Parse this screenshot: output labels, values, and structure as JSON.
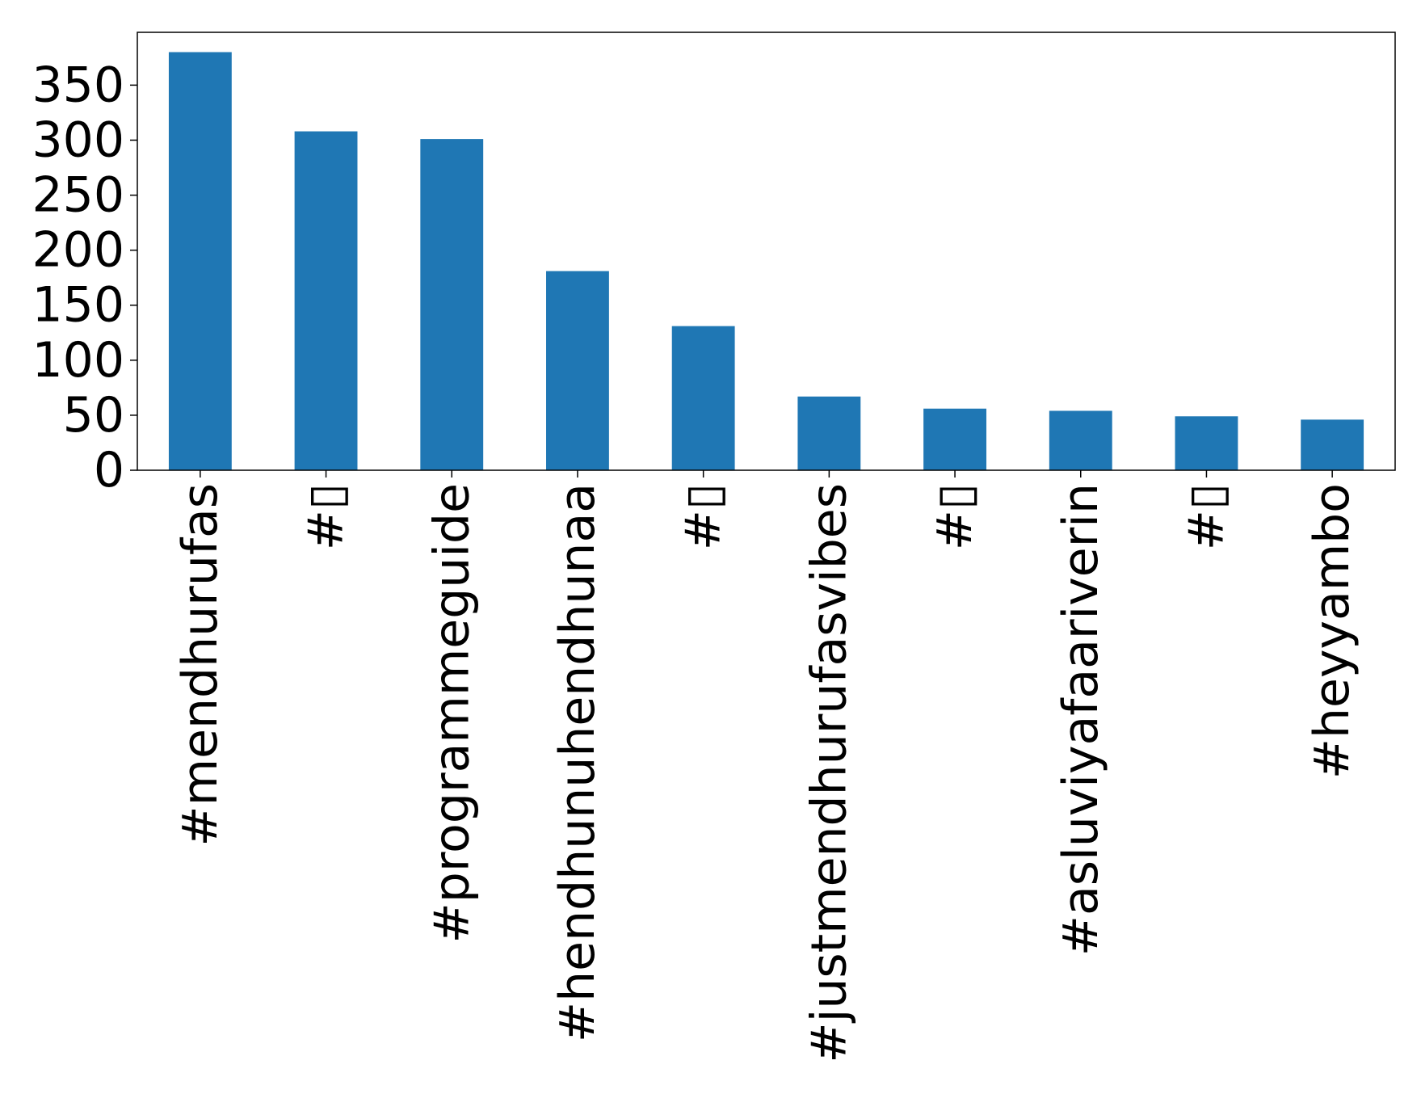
{
  "chart_data": {
    "type": "bar",
    "title": "",
    "xlabel": "",
    "ylabel": "",
    "categories": [
      "#mendhurufas",
      "#▯",
      "#programmeguide",
      "#hendhunuhendhunaa",
      "#▯",
      "#justmendhurufasvibes",
      "#▯",
      "#asluviyafaariverin",
      "#▯",
      "#heyyambo"
    ],
    "values": [
      380,
      308,
      301,
      181,
      131,
      67,
      56,
      54,
      49,
      46
    ],
    "ylim": [
      0,
      398
    ],
    "yticks": [
      0,
      50,
      100,
      150,
      200,
      250,
      300,
      350
    ],
    "grid": false,
    "legend": "none",
    "bar_color": "#1f77b4"
  }
}
